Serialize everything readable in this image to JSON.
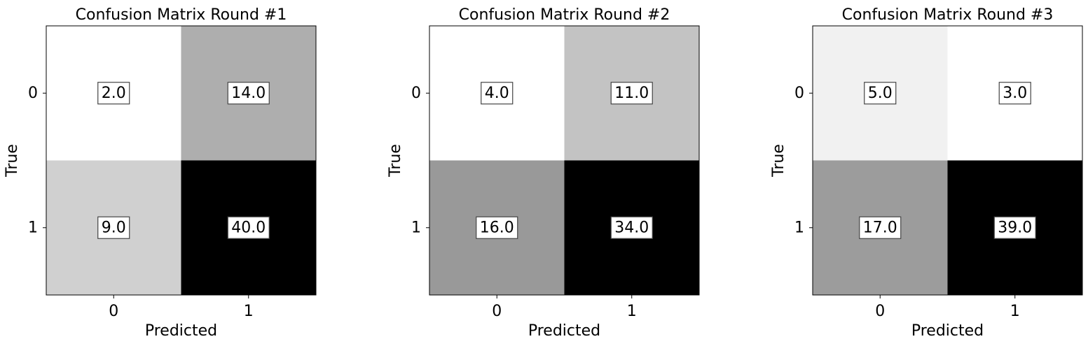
{
  "chart_data": [
    {
      "type": "heatmap",
      "title": "Confusion Matrix Round #1",
      "xlabel": "Predicted",
      "ylabel": "True",
      "x_ticks": [
        "0",
        "1"
      ],
      "y_ticks": [
        "0",
        "1"
      ],
      "values": [
        [
          2.0,
          14.0
        ],
        [
          9.0,
          40.0
        ]
      ],
      "cell_labels": [
        [
          "2.0",
          "14.0"
        ],
        [
          "9.0",
          "40.0"
        ]
      ],
      "colormap": "gray_r"
    },
    {
      "type": "heatmap",
      "title": "Confusion Matrix Round #2",
      "xlabel": "Predicted",
      "ylabel": "True",
      "x_ticks": [
        "0",
        "1"
      ],
      "y_ticks": [
        "0",
        "1"
      ],
      "values": [
        [
          4.0,
          11.0
        ],
        [
          16.0,
          34.0
        ]
      ],
      "cell_labels": [
        [
          "4.0",
          "11.0"
        ],
        [
          "16.0",
          "34.0"
        ]
      ],
      "colormap": "gray_r"
    },
    {
      "type": "heatmap",
      "title": "Confusion Matrix Round #3",
      "xlabel": "Predicted",
      "ylabel": "True",
      "x_ticks": [
        "0",
        "1"
      ],
      "y_ticks": [
        "0",
        "1"
      ],
      "values": [
        [
          5.0,
          3.0
        ],
        [
          17.0,
          39.0
        ]
      ],
      "cell_labels": [
        [
          "5.0",
          "3.0"
        ],
        [
          "17.0",
          "39.0"
        ]
      ],
      "colormap": "gray_r"
    }
  ]
}
